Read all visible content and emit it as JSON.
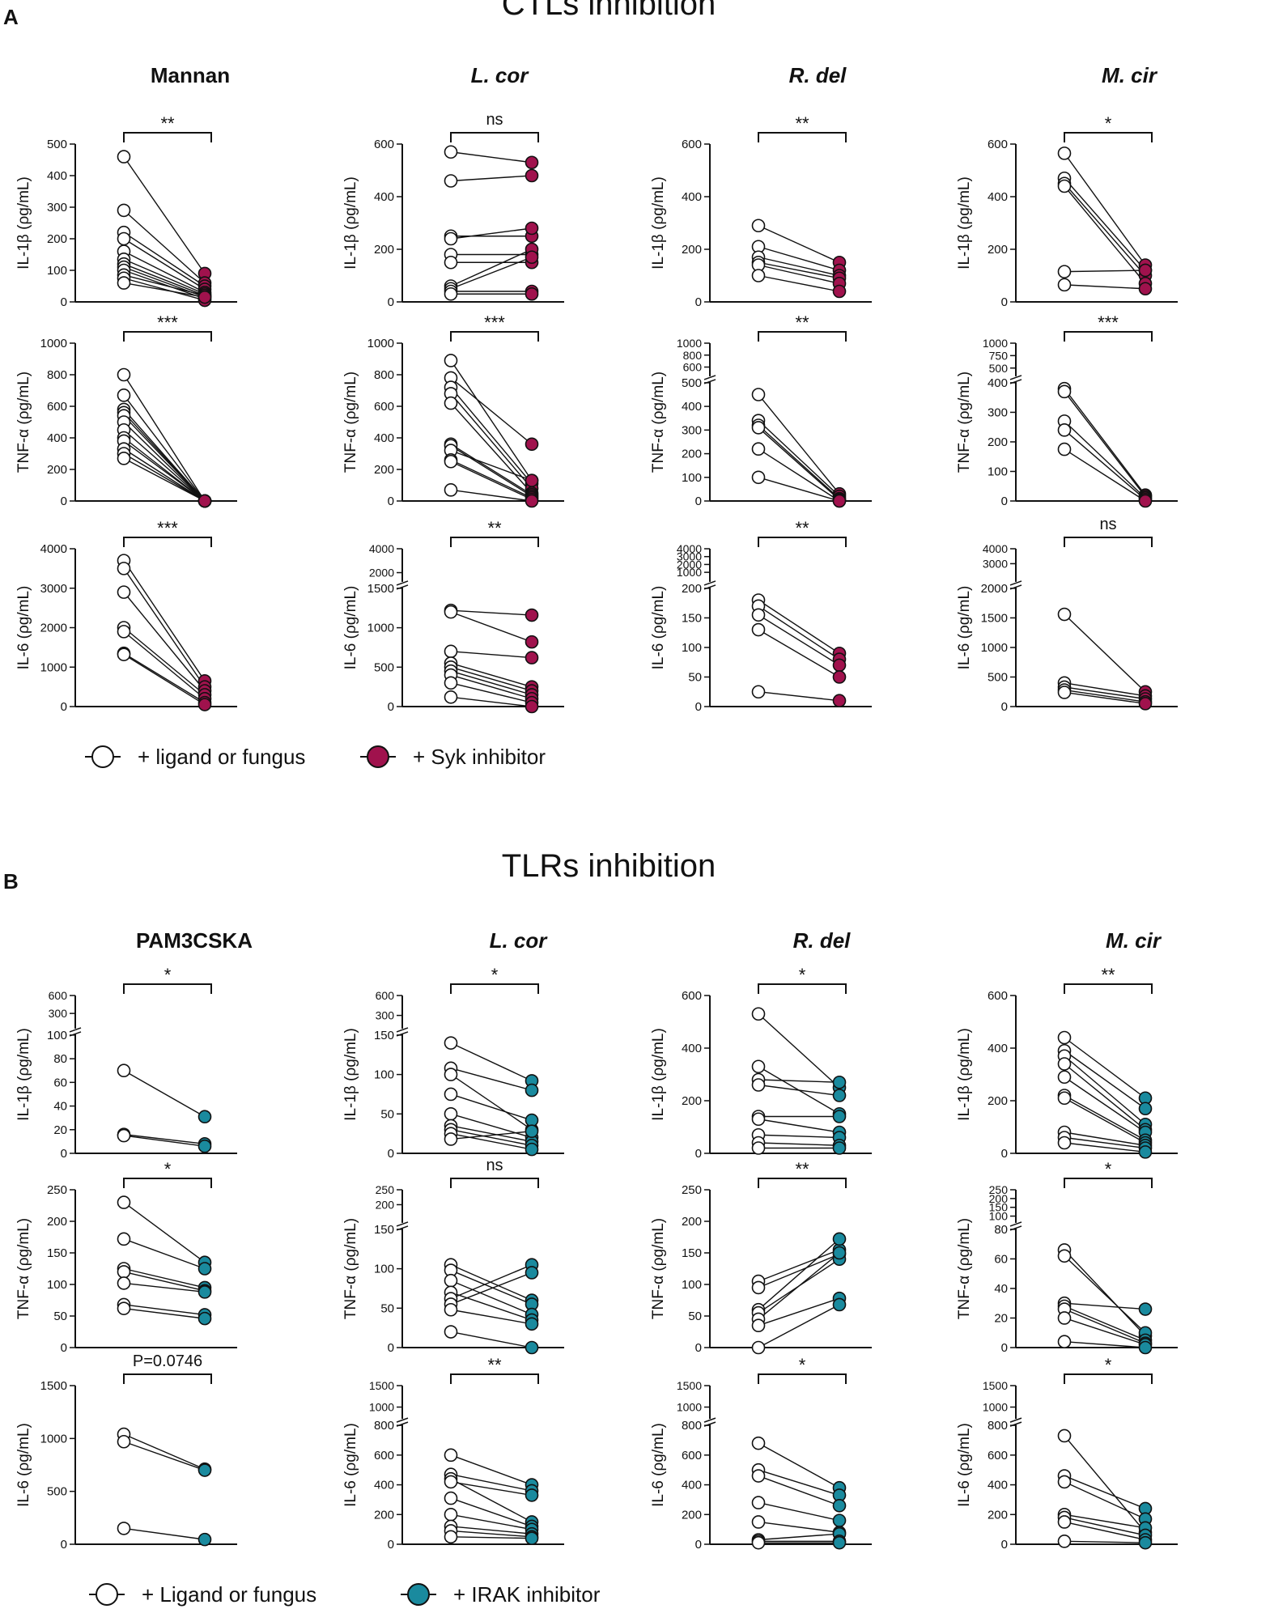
{
  "figure": {
    "panels": [
      {
        "letter": "A",
        "title": "CTLs inhibition",
        "treated_color": "#a0124d",
        "legend": {
          "control": "+ ligand or fungus",
          "treated": "+ Syk inhibitor"
        },
        "columns": [
          {
            "title": "Mannan",
            "italic": false
          },
          {
            "title": "L. cor",
            "italic": true
          },
          {
            "title": "R. del",
            "italic": true
          },
          {
            "title": "M. cir",
            "italic": true
          }
        ]
      },
      {
        "letter": "B",
        "title": "TLRs inhibition",
        "treated_color": "#1a8a9e",
        "legend": {
          "control": "+ Ligand or fungus",
          "treated": "+ IRAK inhibitor"
        },
        "columns": [
          {
            "title": "PAM3CSKA",
            "italic": false
          },
          {
            "title": "L. cor",
            "italic": true
          },
          {
            "title": "R. del",
            "italic": true
          },
          {
            "title": "M. cir",
            "italic": true
          }
        ]
      }
    ]
  },
  "chart_data": [
    {
      "type": "scatter",
      "panel": "A",
      "column": "Mannan",
      "ylabel": "IL-1β (ρg/mL)",
      "ylim": [
        0,
        500
      ],
      "yticks": [
        0,
        100,
        200,
        300,
        400,
        500
      ],
      "significance": "**",
      "pairs": [
        [
          460,
          90
        ],
        [
          290,
          60
        ],
        [
          220,
          50
        ],
        [
          200,
          40
        ],
        [
          160,
          30
        ],
        [
          135,
          25
        ],
        [
          120,
          20
        ],
        [
          110,
          15
        ],
        [
          100,
          10
        ],
        [
          85,
          20
        ],
        [
          75,
          5
        ],
        [
          60,
          15
        ]
      ]
    },
    {
      "type": "scatter",
      "panel": "A",
      "column": "L. cor",
      "ylabel": "IL-1β (ρg/mL)",
      "ylim": [
        0,
        600
      ],
      "yticks": [
        0,
        200,
        400,
        600
      ],
      "significance": "ns",
      "pairs": [
        [
          570,
          530
        ],
        [
          460,
          480
        ],
        [
          250,
          250
        ],
        [
          240,
          280
        ],
        [
          180,
          180
        ],
        [
          150,
          150
        ],
        [
          60,
          200
        ],
        [
          50,
          170
        ],
        [
          40,
          40
        ],
        [
          30,
          30
        ]
      ]
    },
    {
      "type": "scatter",
      "panel": "A",
      "column": "R. del",
      "ylabel": "IL-1β (ρg/mL)",
      "ylim": [
        0,
        600
      ],
      "yticks": [
        0,
        200,
        400,
        600
      ],
      "significance": "**",
      "pairs": [
        [
          290,
          150
        ],
        [
          210,
          120
        ],
        [
          170,
          100
        ],
        [
          150,
          90
        ],
        [
          140,
          70
        ],
        [
          100,
          40
        ]
      ]
    },
    {
      "type": "scatter",
      "panel": "A",
      "column": "M. cir",
      "ylabel": "IL-1β (ρg/mL)",
      "ylim": [
        0,
        600
      ],
      "yticks": [
        0,
        200,
        400,
        600
      ],
      "significance": "*",
      "pairs": [
        [
          565,
          140
        ],
        [
          470,
          120
        ],
        [
          450,
          100
        ],
        [
          440,
          70
        ],
        [
          115,
          120
        ],
        [
          65,
          50
        ]
      ]
    },
    {
      "type": "scatter",
      "panel": "A",
      "column": "Mannan",
      "ylabel": "TNF-α (ρg/mL)",
      "ylim": [
        0,
        1000
      ],
      "yticks": [
        0,
        200,
        400,
        600,
        800,
        1000
      ],
      "significance": "***",
      "pairs": [
        [
          800,
          0
        ],
        [
          670,
          0
        ],
        [
          580,
          0
        ],
        [
          560,
          0
        ],
        [
          540,
          0
        ],
        [
          500,
          0
        ],
        [
          450,
          0
        ],
        [
          400,
          0
        ],
        [
          380,
          0
        ],
        [
          330,
          0
        ],
        [
          300,
          0
        ],
        [
          270,
          0
        ]
      ]
    },
    {
      "type": "scatter",
      "panel": "A",
      "column": "L. cor",
      "ylabel": "TNF-α (ρg/mL)",
      "ylim": [
        0,
        1000
      ],
      "yticks": [
        0,
        200,
        400,
        600,
        800,
        1000
      ],
      "significance": "***",
      "pairs": [
        [
          890,
          130
        ],
        [
          780,
          360
        ],
        [
          720,
          110
        ],
        [
          680,
          80
        ],
        [
          620,
          50
        ],
        [
          360,
          40
        ],
        [
          350,
          30
        ],
        [
          320,
          130
        ],
        [
          260,
          20
        ],
        [
          250,
          10
        ],
        [
          70,
          0
        ]
      ]
    },
    {
      "type": "scatter",
      "panel": "A",
      "column": "R. del",
      "ylabel": "TNF-α (ρg/mL)",
      "ylim": [
        0,
        1000
      ],
      "yticks": [
        0,
        100,
        200,
        300,
        400,
        500,
        600,
        800,
        1000
      ],
      "break": {
        "at": 500
      },
      "significance": "**",
      "pairs": [
        [
          450,
          30
        ],
        [
          340,
          20
        ],
        [
          320,
          10
        ],
        [
          310,
          5
        ],
        [
          220,
          0
        ],
        [
          100,
          0
        ]
      ]
    },
    {
      "type": "scatter",
      "panel": "A",
      "column": "M. cir",
      "ylabel": "TNF-α (ρg/mL)",
      "ylim": [
        0,
        1000
      ],
      "yticks": [
        0,
        100,
        200,
        300,
        400,
        500,
        750,
        1000
      ],
      "break": {
        "at": 400
      },
      "significance": "***",
      "pairs": [
        [
          380,
          20
        ],
        [
          370,
          15
        ],
        [
          270,
          10
        ],
        [
          240,
          5
        ],
        [
          175,
          0
        ]
      ]
    },
    {
      "type": "scatter",
      "panel": "A",
      "column": "Mannan",
      "ylabel": "IL-6 (ρg/mL)",
      "ylim": [
        0,
        4000
      ],
      "yticks": [
        0,
        1000,
        2000,
        3000,
        4000
      ],
      "significance": "***",
      "pairs": [
        [
          3700,
          650
        ],
        [
          3500,
          500
        ],
        [
          2900,
          400
        ],
        [
          2000,
          300
        ],
        [
          1900,
          200
        ],
        [
          1350,
          100
        ],
        [
          1320,
          50
        ]
      ]
    },
    {
      "type": "scatter",
      "panel": "A",
      "column": "L. cor",
      "ylabel": "IL-6 (ρg/mL)",
      "ylim": [
        0,
        4000
      ],
      "yticks": [
        0,
        500,
        1000,
        1500,
        2000,
        4000
      ],
      "break": {
        "at": 1500
      },
      "significance": "**",
      "pairs": [
        [
          1220,
          1160
        ],
        [
          1200,
          820
        ],
        [
          700,
          620
        ],
        [
          550,
          250
        ],
        [
          500,
          200
        ],
        [
          450,
          150
        ],
        [
          400,
          100
        ],
        [
          300,
          50
        ],
        [
          120,
          0
        ]
      ]
    },
    {
      "type": "scatter",
      "panel": "A",
      "column": "R. del",
      "ylabel": "IL-6 (ρg/mL)",
      "ylim": [
        0,
        4000
      ],
      "yticks": [
        0,
        50,
        100,
        150,
        200,
        1000,
        2000,
        3000,
        4000
      ],
      "break": {
        "at": 200
      },
      "significance": "**",
      "pairs": [
        [
          180,
          90
        ],
        [
          170,
          80
        ],
        [
          155,
          70
        ],
        [
          130,
          50
        ],
        [
          25,
          10
        ]
      ]
    },
    {
      "type": "scatter",
      "panel": "A",
      "column": "M. cir",
      "ylabel": "IL-6 (ρg/mL)",
      "ylim": [
        0,
        4000
      ],
      "yticks": [
        0,
        500,
        1000,
        1500,
        2000,
        3000,
        4000
      ],
      "break": {
        "at": 2000
      },
      "significance": "ns",
      "pairs": [
        [
          1560,
          250
        ],
        [
          400,
          180
        ],
        [
          330,
          130
        ],
        [
          280,
          80
        ],
        [
          240,
          50
        ]
      ]
    },
    {
      "type": "scatter",
      "panel": "B",
      "column": "PAM3CSKA",
      "ylabel": "IL-1β (ρg/mL)",
      "ylim": [
        0,
        600
      ],
      "yticks": [
        0,
        20,
        40,
        60,
        80,
        100,
        300,
        600
      ],
      "break": {
        "at": 100
      },
      "significance": "*",
      "pairs": [
        [
          70,
          31
        ],
        [
          16,
          8
        ],
        [
          15,
          6
        ]
      ]
    },
    {
      "type": "scatter",
      "panel": "B",
      "column": "L. cor",
      "ylabel": "IL-1β (ρg/mL)",
      "ylim": [
        0,
        600
      ],
      "yticks": [
        0,
        50,
        100,
        150,
        300,
        600
      ],
      "break": {
        "at": 150
      },
      "significance": "*",
      "pairs": [
        [
          140,
          92
        ],
        [
          108,
          80
        ],
        [
          100,
          30
        ],
        [
          75,
          42
        ],
        [
          50,
          20
        ],
        [
          35,
          15
        ],
        [
          30,
          10
        ],
        [
          25,
          5
        ],
        [
          18,
          28
        ]
      ]
    },
    {
      "type": "scatter",
      "panel": "B",
      "column": "R. del",
      "ylabel": "IL-1β (ρg/mL)",
      "ylim": [
        0,
        600
      ],
      "yticks": [
        0,
        200,
        400,
        600
      ],
      "significance": "*",
      "pairs": [
        [
          530,
          250
        ],
        [
          330,
          150
        ],
        [
          280,
          270
        ],
        [
          260,
          220
        ],
        [
          140,
          140
        ],
        [
          130,
          80
        ],
        [
          70,
          60
        ],
        [
          40,
          30
        ],
        [
          20,
          20
        ]
      ]
    },
    {
      "type": "scatter",
      "panel": "B",
      "column": "M. cir",
      "ylabel": "IL-1β (ρg/mL)",
      "ylim": [
        0,
        600
      ],
      "yticks": [
        0,
        200,
        400,
        600
      ],
      "significance": "**",
      "pairs": [
        [
          440,
          210
        ],
        [
          390,
          170
        ],
        [
          370,
          110
        ],
        [
          340,
          90
        ],
        [
          290,
          80
        ],
        [
          220,
          50
        ],
        [
          210,
          40
        ],
        [
          80,
          30
        ],
        [
          60,
          20
        ],
        [
          40,
          5
        ]
      ]
    },
    {
      "type": "scatter",
      "panel": "B",
      "column": "PAM3CSKA",
      "ylabel": "TNF-α (ρg/mL)",
      "ylim": [
        0,
        250
      ],
      "yticks": [
        0,
        50,
        100,
        150,
        200,
        250
      ],
      "significance": "*",
      "pairs": [
        [
          230,
          135
        ],
        [
          172,
          125
        ],
        [
          125,
          95
        ],
        [
          120,
          90
        ],
        [
          102,
          88
        ],
        [
          68,
          52
        ],
        [
          62,
          46
        ]
      ]
    },
    {
      "type": "scatter",
      "panel": "B",
      "column": "L. cor",
      "ylabel": "TNF-α (ρg/mL)",
      "ylim": [
        0,
        250
      ],
      "yticks": [
        0,
        50,
        100,
        150,
        200,
        250
      ],
      "break": {
        "at": 150
      },
      "significance": "ns",
      "pairs": [
        [
          105,
          60
        ],
        [
          98,
          55
        ],
        [
          85,
          42
        ],
        [
          70,
          35
        ],
        [
          62,
          105
        ],
        [
          55,
          95
        ],
        [
          48,
          30
        ],
        [
          20,
          0
        ]
      ]
    },
    {
      "type": "scatter",
      "panel": "B",
      "column": "R. del",
      "ylabel": "TNF-α (ρg/mL)",
      "ylim": [
        0,
        250
      ],
      "yticks": [
        0,
        50,
        100,
        150,
        200,
        250
      ],
      "significance": "**",
      "pairs": [
        [
          105,
          155
        ],
        [
          95,
          148
        ],
        [
          60,
          172
        ],
        [
          55,
          140
        ],
        [
          45,
          150
        ],
        [
          35,
          78
        ],
        [
          0,
          68
        ]
      ]
    },
    {
      "type": "scatter",
      "panel": "B",
      "column": "M. cir",
      "ylabel": "TNF-α (ρg/mL)",
      "ylim": [
        0,
        250
      ],
      "yticks": [
        0,
        20,
        40,
        60,
        80,
        100,
        150,
        200,
        250
      ],
      "break": {
        "at": 80
      },
      "significance": "*",
      "pairs": [
        [
          66,
          8
        ],
        [
          62,
          10
        ],
        [
          30,
          26
        ],
        [
          28,
          5
        ],
        [
          26,
          3
        ],
        [
          20,
          2
        ],
        [
          4,
          0
        ]
      ]
    },
    {
      "type": "scatter",
      "panel": "B",
      "column": "PAM3CSKA",
      "ylabel": "IL-6 (ρg/mL)",
      "ylim": [
        0,
        1500
      ],
      "yticks": [
        0,
        500,
        1000,
        1500
      ],
      "significance": "P=0.0746",
      "pairs": [
        [
          1040,
          710
        ],
        [
          970,
          700
        ],
        [
          150,
          45
        ]
      ]
    },
    {
      "type": "scatter",
      "panel": "B",
      "column": "L. cor",
      "ylabel": "IL-6 (ρg/mL)",
      "ylim": [
        0,
        1500
      ],
      "yticks": [
        0,
        200,
        400,
        600,
        800,
        1000,
        1500
      ],
      "break": {
        "at": 800
      },
      "significance": "**",
      "pairs": [
        [
          600,
          400
        ],
        [
          470,
          360
        ],
        [
          440,
          150
        ],
        [
          420,
          330
        ],
        [
          310,
          120
        ],
        [
          200,
          100
        ],
        [
          120,
          70
        ],
        [
          90,
          50
        ],
        [
          50,
          40
        ]
      ]
    },
    {
      "type": "scatter",
      "panel": "B",
      "column": "R. del",
      "ylabel": "IL-6 (ρg/mL)",
      "ylim": [
        0,
        1500
      ],
      "yticks": [
        0,
        200,
        400,
        600,
        800,
        1000,
        1500
      ],
      "break": {
        "at": 800
      },
      "significance": "*",
      "pairs": [
        [
          680,
          380
        ],
        [
          500,
          330
        ],
        [
          460,
          260
        ],
        [
          280,
          160
        ],
        [
          150,
          80
        ],
        [
          30,
          70
        ],
        [
          20,
          20
        ],
        [
          10,
          10
        ]
      ]
    },
    {
      "type": "scatter",
      "panel": "B",
      "column": "M. cir",
      "ylabel": "IL-6 (ρg/mL)",
      "ylim": [
        0,
        1500
      ],
      "yticks": [
        0,
        200,
        400,
        600,
        800,
        1000,
        1500
      ],
      "break": {
        "at": 800
      },
      "significance": "*",
      "pairs": [
        [
          730,
          80
        ],
        [
          460,
          240
        ],
        [
          420,
          170
        ],
        [
          200,
          110
        ],
        [
          180,
          60
        ],
        [
          150,
          30
        ],
        [
          20,
          10
        ]
      ]
    }
  ]
}
